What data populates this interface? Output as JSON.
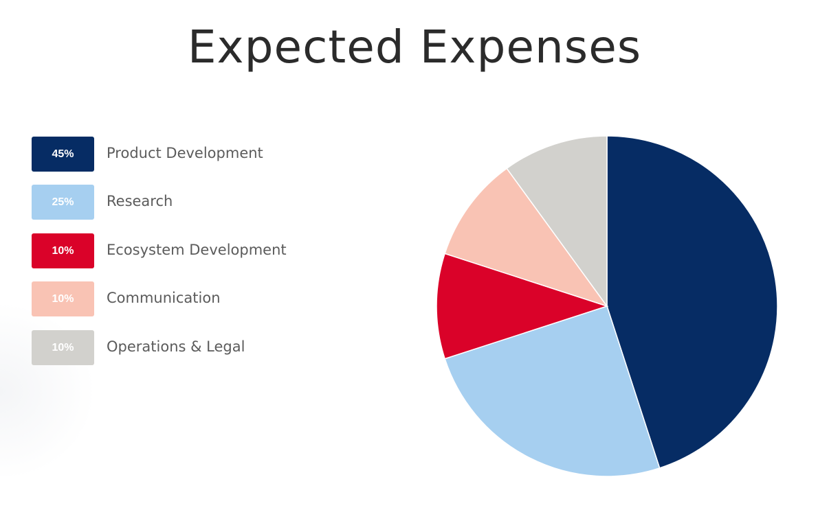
{
  "chart_data": {
    "type": "pie",
    "title": "Expected Expenses",
    "legend_position": "left",
    "start_angle": "top, clockwise",
    "slices": [
      {
        "label": "Product Development",
        "value": 45,
        "display": "45%",
        "color": "#062c64"
      },
      {
        "label": "Research",
        "value": 25,
        "display": "25%",
        "color": "#a6cff0"
      },
      {
        "label": "Ecosystem Development",
        "value": 10,
        "display": "10%",
        "color": "#da0229"
      },
      {
        "label": "Communication",
        "value": 10,
        "display": "10%",
        "color": "#f9c3b4"
      },
      {
        "label": "Operations & Legal",
        "value": 10,
        "display": "10%",
        "color": "#d2d1cd"
      }
    ]
  }
}
